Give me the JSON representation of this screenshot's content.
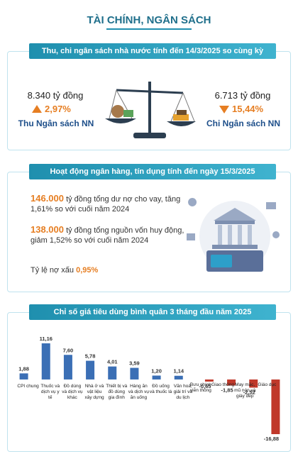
{
  "header": {
    "title": "TÀI CHÍNH, NGÂN SÁCH"
  },
  "budget": {
    "title": "Thu, chi ngân sách nhà nước tính đến 14/3/2025 so cùng kỳ",
    "revenue": {
      "amount": "8.340 tỷ đồng",
      "change": "2,97%",
      "label": "Thu Ngân sách NN"
    },
    "expense": {
      "amount": "6.713 tỷ đồng",
      "change": "15,44%",
      "label": "Chi Ngân sách NN"
    }
  },
  "banking": {
    "title": "Hoạt động ngân hàng, tín dụng tính đến ngày 15/3/2025",
    "items": [
      {
        "highlight": "146.000",
        "text": "tỷ đồng tổng dư nợ cho vay, tăng 1,61% so với cuối năm 2024"
      },
      {
        "highlight": "138.000",
        "text": "tỷ đồng tổng nguồn vốn huy động, giảm 1,52% so với cuối năm 2024"
      },
      {
        "text": "Tỷ lệ nợ xấu",
        "highlight": "0,95%"
      }
    ]
  },
  "chart_data": {
    "type": "bar",
    "title": "Chỉ số giá tiêu dùng bình quân 3 tháng đầu năm 2025",
    "categories": [
      "CPI chung",
      "Thuốc và dịch vụ y tế",
      "Đồ dùng và dịch vụ khác",
      "Nhà ở và vật liệu xây dựng",
      "Thiết bị và đồ dùng gia đình",
      "Hàng ăn và dịch vụ ăn uống",
      "Đồ uống và thuốc lá",
      "Văn hoá, giải trí và du lịch",
      "Bưu chính viễn thông",
      "Giao thông",
      "May mặc, mũ nón và giày dép",
      "Giáo dục"
    ],
    "values": [
      1.88,
      11.16,
      7.6,
      5.78,
      4.01,
      3.59,
      1.2,
      1.14,
      -0.65,
      -1.85,
      -2.52,
      -16.88
    ],
    "value_labels": [
      "1,88",
      "11,16",
      "7,60",
      "5,78",
      "4,01",
      "3,59",
      "1,20",
      "1,14",
      "-0,65",
      "-1,85",
      "-2,52",
      "-16,88"
    ],
    "positive_color": "#3b6fb5",
    "negative_color": "#c0392b"
  }
}
